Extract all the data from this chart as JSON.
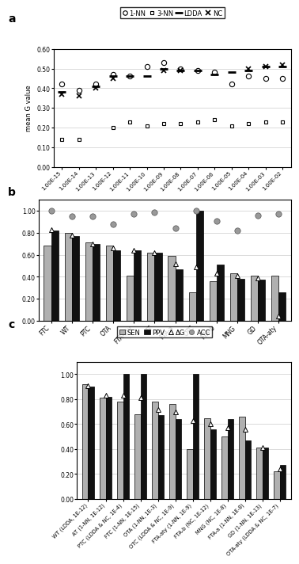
{
  "panel_a": {
    "x_labels": [
      "1.00E-15",
      "1.00E-14",
      "1.00E-13",
      "1.00E-12",
      "1.00E-11",
      "1.00E-10",
      "1.00E-09",
      "1.00E-08",
      "1.00E-07",
      "1.00E-06",
      "1.00E-05",
      "1.00E-04",
      "1.00E-03",
      "1.00E-02"
    ],
    "1nn": [
      0.42,
      0.39,
      0.42,
      0.47,
      0.46,
      0.51,
      0.53,
      0.5,
      0.49,
      0.48,
      0.42,
      0.46,
      0.45,
      0.45
    ],
    "3nn": [
      0.14,
      0.14,
      null,
      0.2,
      0.23,
      0.21,
      0.22,
      0.22,
      0.23,
      0.24,
      0.21,
      0.22,
      0.23,
      0.23
    ],
    "ldda": [
      0.38,
      null,
      0.41,
      0.46,
      0.46,
      0.46,
      0.5,
      0.49,
      0.49,
      0.47,
      0.48,
      0.49,
      0.51,
      0.51
    ],
    "nc": [
      0.37,
      0.36,
      0.4,
      0.45,
      null,
      null,
      0.49,
      0.49,
      null,
      null,
      null,
      0.5,
      0.51,
      0.52
    ]
  },
  "panel_b": {
    "categories": [
      "FTC",
      "WT",
      "PTC",
      "OTA",
      "FTA-aty",
      "AT",
      "FTA-a",
      "OTC",
      "FTA-b",
      "MNG",
      "GD",
      "OTA-aty"
    ],
    "SEN": [
      0.68,
      0.8,
      0.71,
      0.68,
      0.41,
      0.62,
      0.59,
      0.26,
      0.36,
      0.43,
      0.41,
      0.41
    ],
    "PPV": [
      0.82,
      0.77,
      0.7,
      0.64,
      0.64,
      0.62,
      0.47,
      1.0,
      0.51,
      0.38,
      0.37,
      0.26
    ],
    "G": [
      0.83,
      0.78,
      0.7,
      0.66,
      0.64,
      0.62,
      0.52,
      0.49,
      0.43,
      0.41,
      0.39,
      0.04
    ],
    "ACC": [
      1.0,
      0.95,
      0.95,
      0.88,
      0.97,
      0.99,
      0.84,
      1.0,
      0.91,
      0.82,
      0.96,
      0.97
    ]
  },
  "panel_c": {
    "categories": [
      "WT (LDDA, 1E-12)",
      "AT (1-NN, 1E-12)",
      "PTC (LDDA & NC, 1E-4)",
      "FTC (1-NN, 1E-15)",
      "OTA (1-NN, 1E-3)",
      "OTC (LDDA & NC, 1E-9)",
      "FTA-aty (1-NN, 1E-9)",
      "FTA-b (NC, 1E-12)",
      "MNG (NC, 1E-8)",
      "FTA-a (1-NN, 1E-8)",
      "GD (1-NN, 1E-13)",
      "OTA-aty (LDDA & NC, 1E-7)"
    ],
    "SEN": [
      0.92,
      0.81,
      0.78,
      0.68,
      0.78,
      0.76,
      0.4,
      0.65,
      0.5,
      0.66,
      0.41,
      0.22
    ],
    "PPV": [
      0.9,
      0.82,
      1.0,
      1.0,
      0.67,
      0.64,
      1.0,
      0.56,
      0.64,
      0.47,
      0.41,
      0.27
    ],
    "G": [
      0.91,
      0.83,
      0.83,
      0.81,
      0.72,
      0.7,
      0.63,
      0.6,
      0.57,
      0.56,
      0.41,
      0.24
    ]
  },
  "colors": {
    "SEN": "#b0b0b0",
    "PPV": "#111111",
    "bar_edge": "#000000"
  }
}
